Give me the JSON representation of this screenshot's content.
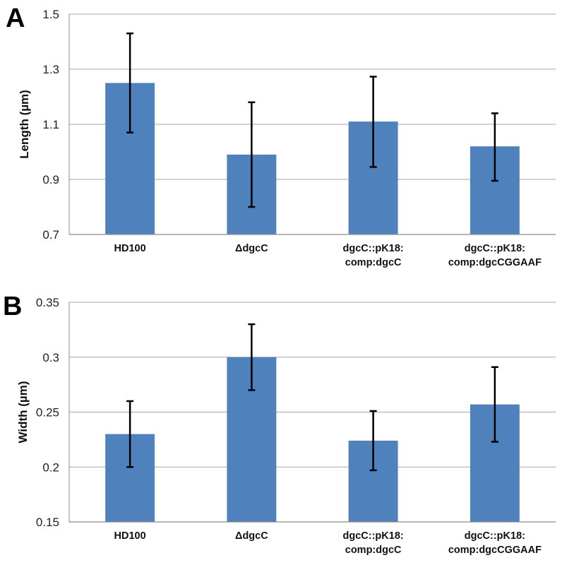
{
  "chart_data": [
    {
      "panel": "A",
      "type": "bar",
      "categories": [
        [
          "HD100"
        ],
        [
          "ΔdgcC"
        ],
        [
          "dgcC::pK18:",
          "comp:dgcC"
        ],
        [
          "dgcC::pK18:",
          "comp:dgcCGGAAF"
        ]
      ],
      "values": [
        1.25,
        0.99,
        1.11,
        1.02
      ],
      "error_low": [
        1.07,
        0.8,
        0.945,
        0.895
      ],
      "error_high": [
        1.43,
        1.18,
        1.273,
        1.14
      ],
      "ylabel": "Length (µm)",
      "ylim": [
        0.7,
        1.5
      ],
      "yticks": [
        "0.7",
        "0.9",
        "1.1",
        "1.3",
        "1.5"
      ],
      "bar_color": "#4f81bd",
      "grid": true
    },
    {
      "panel": "B",
      "type": "bar",
      "categories": [
        [
          "HD100"
        ],
        [
          "ΔdgcC"
        ],
        [
          "dgcC::pK18:",
          "comp:dgcC"
        ],
        [
          "dgcC::pK18:",
          "comp:dgcCGGAAF"
        ]
      ],
      "values": [
        0.23,
        0.3,
        0.224,
        0.257
      ],
      "error_low": [
        0.2,
        0.27,
        0.197,
        0.223
      ],
      "error_high": [
        0.26,
        0.33,
        0.251,
        0.291
      ],
      "ylabel": "Width (µm)",
      "ylim": [
        0.15,
        0.35
      ],
      "yticks": [
        "0.15",
        "0.2",
        "0.25",
        "0.3",
        "0.35"
      ],
      "bar_color": "#4f81bd",
      "grid": true
    }
  ]
}
